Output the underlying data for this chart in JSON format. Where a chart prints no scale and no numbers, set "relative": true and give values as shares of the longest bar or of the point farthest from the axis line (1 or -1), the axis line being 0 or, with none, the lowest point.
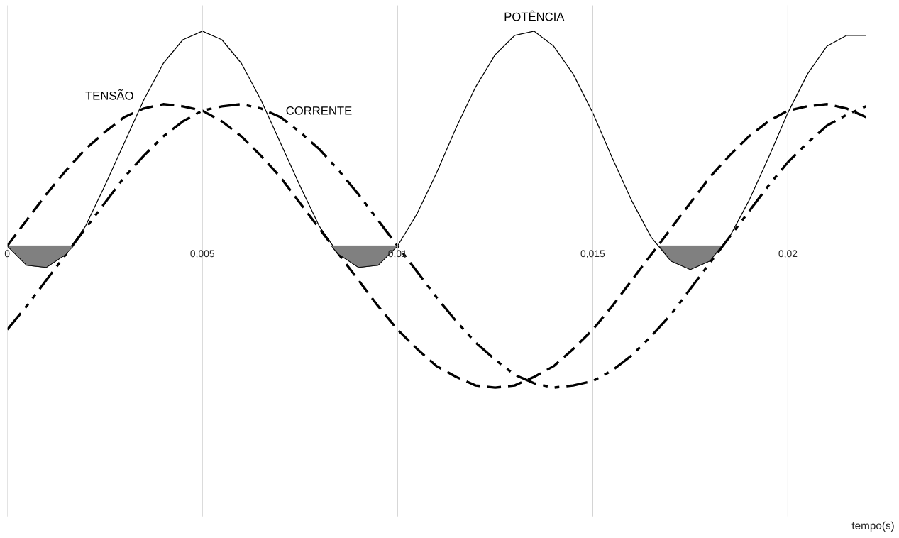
{
  "chart_data": {
    "type": "line",
    "relative": true,
    "annotations": [
      "tempo(s)"
    ],
    "xlim": [
      0,
      0.0228
    ],
    "xticks": [
      {
        "value": 0,
        "label": "0"
      },
      {
        "value": 0.005,
        "label": "0,005"
      },
      {
        "value": 0.01,
        "label": "0,01"
      },
      {
        "value": 0.015,
        "label": "0,015"
      },
      {
        "value": 0.02,
        "label": "0,02"
      }
    ],
    "grid": "x",
    "legend": false,
    "x": [
      0,
      0.0005,
      0.001,
      0.0015,
      0.002,
      0.0025,
      0.003,
      0.0035,
      0.004,
      0.0045,
      0.005,
      0.0055,
      0.006,
      0.0065,
      0.007,
      0.0075,
      0.008,
      0.0085,
      0.009,
      0.0095,
      0.01,
      0.0105,
      0.011,
      0.0115,
      0.012,
      0.0125,
      0.013,
      0.0135,
      0.014,
      0.0145,
      0.015,
      0.0155,
      0.016,
      0.0165,
      0.017,
      0.0175,
      0.018,
      0.0185,
      0.019,
      0.0195,
      0.02,
      0.0205,
      0.021,
      0.0215,
      0.022
    ],
    "series": [
      {
        "name": "TENSÃO",
        "color": "#000000",
        "line_style": "dashed",
        "values": [
          0,
          0.12,
          0.24,
          0.35,
          0.45,
          0.53,
          0.6,
          0.64,
          0.66,
          0.65,
          0.63,
          0.58,
          0.51,
          0.42,
          0.32,
          0.2,
          0.08,
          -0.04,
          -0.16,
          -0.28,
          -0.39,
          -0.48,
          -0.56,
          -0.61,
          -0.65,
          -0.66,
          -0.65,
          -0.61,
          -0.56,
          -0.48,
          -0.39,
          -0.28,
          -0.16,
          -0.04,
          0.08,
          0.2,
          0.32,
          0.42,
          0.51,
          0.58,
          0.63,
          0.65,
          0.66,
          0.64,
          0.6
        ]
      },
      {
        "name": "CORRENTE",
        "color": "#000000",
        "line_style": "dashdot",
        "values": [
          -0.39,
          -0.28,
          -0.16,
          -0.04,
          0.08,
          0.2,
          0.32,
          0.42,
          0.51,
          0.58,
          0.63,
          0.65,
          0.66,
          0.64,
          0.6,
          0.53,
          0.45,
          0.35,
          0.24,
          0.12,
          0,
          -0.12,
          -0.24,
          -0.35,
          -0.45,
          -0.53,
          -0.6,
          -0.64,
          -0.66,
          -0.65,
          -0.63,
          -0.58,
          -0.51,
          -0.42,
          -0.32,
          -0.2,
          -0.08,
          0.04,
          0.16,
          0.28,
          0.39,
          0.48,
          0.56,
          0.61,
          0.65
        ]
      },
      {
        "name": "POTÊNCIA",
        "color": "#000000",
        "line_style": "solid",
        "values": [
          0,
          -0.09,
          -0.1,
          -0.04,
          0.09,
          0.28,
          0.48,
          0.68,
          0.85,
          0.96,
          1.0,
          0.96,
          0.85,
          0.68,
          0.48,
          0.28,
          0.09,
          -0.04,
          -0.1,
          -0.09,
          0,
          0.15,
          0.34,
          0.55,
          0.74,
          0.89,
          0.98,
          1.0,
          0.93,
          0.8,
          0.62,
          0.41,
          0.21,
          0.04,
          -0.07,
          -0.11,
          -0.07,
          0.04,
          0.21,
          0.41,
          0.62,
          0.8,
          0.93,
          0.98,
          0.98
        ]
      },
      {
        "type": "area",
        "color": "#808080",
        "x": [
          0,
          0.0005,
          0.001,
          0.0015,
          0.0017,
          0.005,
          0.0083,
          0.0085,
          0.009,
          0.0095,
          0.01,
          0.013,
          0.0167,
          0.017,
          0.0175,
          0.018,
          0.0183
        ],
        "values": [
          0,
          -0.09,
          -0.1,
          -0.04,
          0,
          null,
          0,
          -0.04,
          -0.1,
          -0.09,
          0,
          null,
          0,
          -0.07,
          -0.11,
          -0.07,
          0
        ]
      }
    ]
  }
}
